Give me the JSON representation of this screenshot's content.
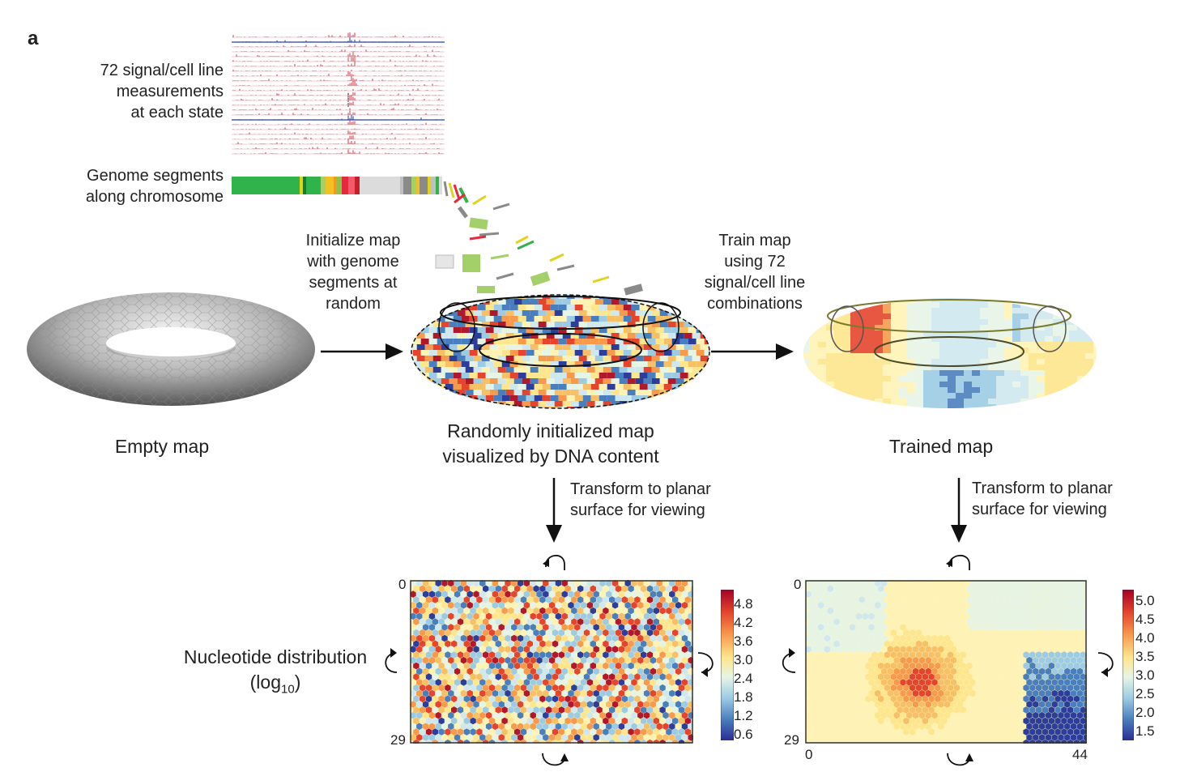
{
  "panel_letter": "a",
  "signals_label": [
    "72 signal/cell line",
    "measurements",
    "at each state"
  ],
  "segments_label": [
    "Genome  segments",
    "along chromosome"
  ],
  "init_label": [
    "Initialize map",
    "with genome",
    "segments at",
    "random"
  ],
  "train_label": [
    "Train map",
    "using 72",
    "signal/cell line",
    "combinations"
  ],
  "empty_map_caption": "Empty map",
  "random_map_caption": [
    "Randomly initialized map",
    "visualized by DNA content"
  ],
  "trained_map_caption": "Trained map",
  "transform_label": [
    "Transform to planar",
    "surface for viewing"
  ],
  "nucleotide_label": "Nucleotide distribution",
  "log_label_prefix": "(log",
  "log_label_sub": "10",
  "log_label_suffix": ")",
  "left_map_axis": {
    "top": "0",
    "bottom": "29"
  },
  "right_map_axis": {
    "top": "0",
    "bottom": "29",
    "x_start": "0",
    "x_end": "44"
  },
  "left_colorbar_ticks": [
    "4.8",
    "4.2",
    "3.6",
    "3.0",
    "2.4",
    "1.8",
    "1.2",
    "0.6"
  ],
  "right_colorbar_ticks": [
    "5.0",
    "4.5",
    "4.0",
    "3.5",
    "3.0",
    "2.5",
    "2.0",
    "1.5"
  ],
  "colors": {
    "arrow": "#111111",
    "track_blue": "#2a3fb0",
    "track_red": "#d8344a",
    "segment_green": "#2fb34a",
    "colormap_high": "#b2182b",
    "colormap_low": "#2c3e99"
  }
}
